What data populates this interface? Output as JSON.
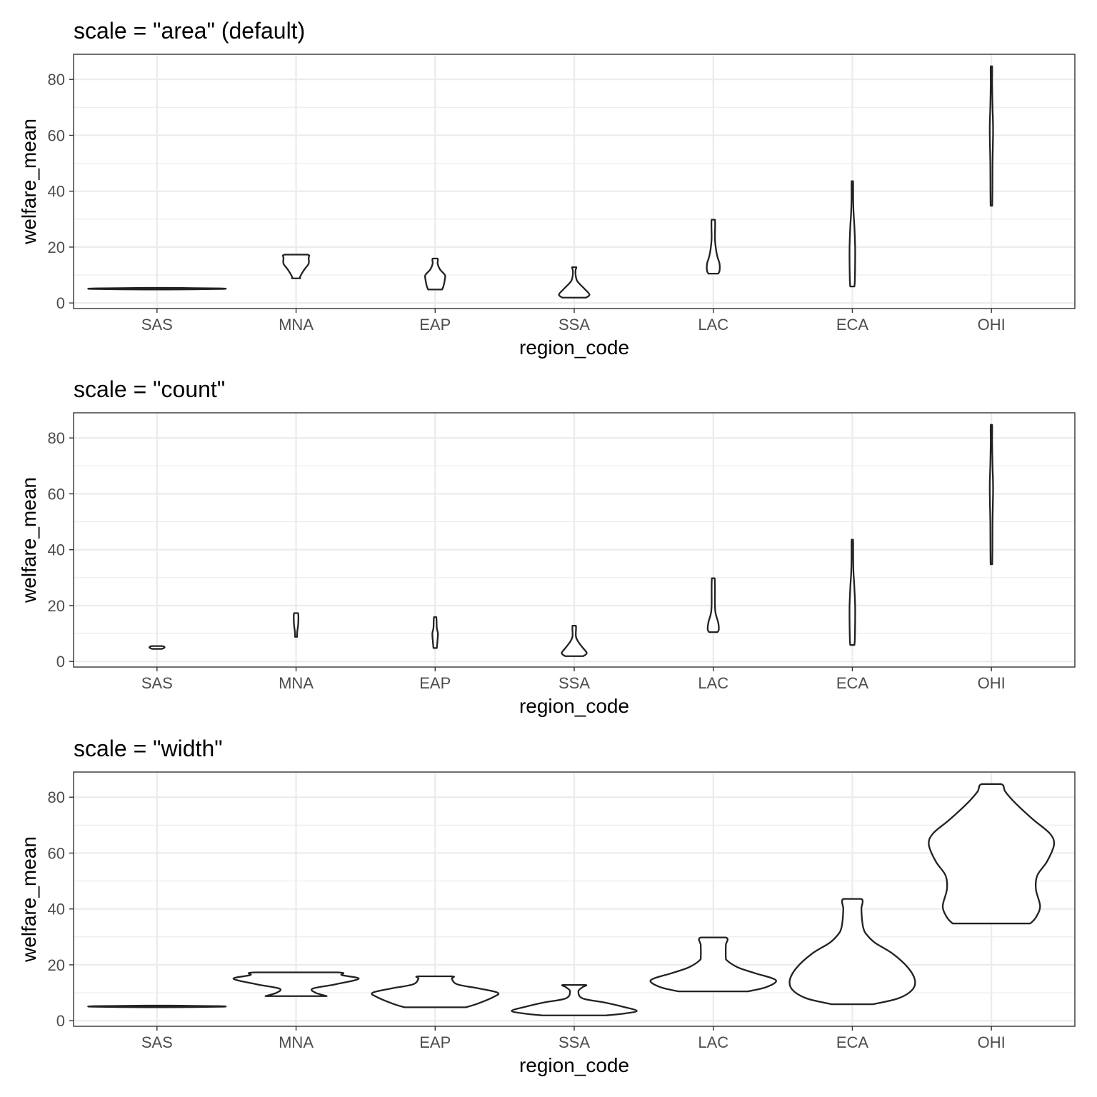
{
  "chart_data": [
    {
      "type": "violin",
      "title": "scale = \"area\" (default)",
      "xlabel": "region_code",
      "ylabel": "welfare_mean",
      "ylim": [
        -2,
        89
      ],
      "yticks": [
        0,
        20,
        40,
        60,
        80
      ],
      "categories": [
        "SAS",
        "MNA",
        "EAP",
        "SSA",
        "LAC",
        "ECA",
        "OHI"
      ],
      "violins": [
        {
          "region": "SAS",
          "profile": [
            [
              4.8,
              0.09
            ],
            [
              5.0,
              0.45
            ],
            [
              5.2,
              0.45
            ],
            [
              5.4,
              0.09
            ]
          ]
        },
        {
          "region": "MNA",
          "profile": [
            [
              8.8,
              0.03
            ],
            [
              9.5,
              0.03
            ],
            [
              12.0,
              0.06
            ],
            [
              14.0,
              0.09
            ],
            [
              16.0,
              0.09
            ],
            [
              17.3,
              0.08
            ]
          ]
        },
        {
          "region": "EAP",
          "profile": [
            [
              4.8,
              0.05
            ],
            [
              6.0,
              0.06
            ],
            [
              8.5,
              0.07
            ],
            [
              10.0,
              0.07
            ],
            [
              12.0,
              0.035
            ],
            [
              14.0,
              0.018
            ],
            [
              15.9,
              0.018
            ]
          ]
        },
        {
          "region": "SSA",
          "profile": [
            [
              1.9,
              0.085
            ],
            [
              3.0,
              0.11
            ],
            [
              5.0,
              0.075
            ],
            [
              6.5,
              0.045
            ],
            [
              8.0,
              0.02
            ],
            [
              10.0,
              0.01
            ],
            [
              11.8,
              0.01
            ],
            [
              12.8,
              0.015
            ]
          ]
        },
        {
          "region": "LAC",
          "profile": [
            [
              10.5,
              0.035
            ],
            [
              11.5,
              0.045
            ],
            [
              14.0,
              0.045
            ],
            [
              16.5,
              0.03
            ],
            [
              19.0,
              0.02
            ],
            [
              23.0,
              0.012
            ],
            [
              29.8,
              0.012
            ]
          ]
        },
        {
          "region": "ECA",
          "profile": [
            [
              5.9,
              0.015
            ],
            [
              8.0,
              0.018
            ],
            [
              14.0,
              0.02
            ],
            [
              20.0,
              0.02
            ],
            [
              27.0,
              0.015
            ],
            [
              32.0,
              0.009
            ],
            [
              37.0,
              0.006
            ],
            [
              43.6,
              0.005
            ]
          ]
        },
        {
          "region": "OHI",
          "profile": [
            [
              34.8,
              0.006
            ],
            [
              40.0,
              0.007
            ],
            [
              50.0,
              0.008
            ],
            [
              62.0,
              0.012
            ],
            [
              70.0,
              0.008
            ],
            [
              78.0,
              0.005
            ],
            [
              84.7,
              0.005
            ]
          ]
        }
      ]
    },
    {
      "type": "violin",
      "title": "scale = \"count\"",
      "xlabel": "region_code",
      "ylabel": "welfare_mean",
      "ylim": [
        -2,
        89
      ],
      "yticks": [
        0,
        20,
        40,
        60,
        80
      ],
      "categories": [
        "SAS",
        "MNA",
        "EAP",
        "SSA",
        "LAC",
        "ECA",
        "OHI"
      ],
      "violins": [
        {
          "region": "SAS",
          "profile": [
            [
              4.5,
              0.035
            ],
            [
              5.0,
              0.055
            ],
            [
              5.5,
              0.035
            ]
          ]
        },
        {
          "region": "MNA",
          "profile": [
            [
              8.8,
              0.007
            ],
            [
              10.5,
              0.008
            ],
            [
              12.0,
              0.012
            ],
            [
              14.0,
              0.016
            ],
            [
              17.3,
              0.014
            ]
          ]
        },
        {
          "region": "EAP",
          "profile": [
            [
              4.8,
              0.012
            ],
            [
              7.0,
              0.016
            ],
            [
              10.0,
              0.02
            ],
            [
              12.0,
              0.012
            ],
            [
              15.9,
              0.008
            ]
          ]
        },
        {
          "region": "SSA",
          "profile": [
            [
              1.9,
              0.065
            ],
            [
              3.0,
              0.09
            ],
            [
              5.0,
              0.06
            ],
            [
              7.0,
              0.03
            ],
            [
              9.0,
              0.012
            ],
            [
              12.8,
              0.012
            ]
          ]
        },
        {
          "region": "LAC",
          "profile": [
            [
              10.5,
              0.03
            ],
            [
              11.5,
              0.04
            ],
            [
              14.0,
              0.035
            ],
            [
              17.0,
              0.018
            ],
            [
              20.0,
              0.012
            ],
            [
              29.8,
              0.01
            ]
          ]
        },
        {
          "region": "ECA",
          "profile": [
            [
              5.9,
              0.015
            ],
            [
              8.0,
              0.018
            ],
            [
              14.0,
              0.02
            ],
            [
              20.0,
              0.02
            ],
            [
              27.0,
              0.014
            ],
            [
              32.0,
              0.008
            ],
            [
              37.0,
              0.006
            ],
            [
              43.6,
              0.005
            ]
          ]
        },
        {
          "region": "OHI",
          "profile": [
            [
              34.8,
              0.006
            ],
            [
              40.0,
              0.007
            ],
            [
              50.0,
              0.008
            ],
            [
              62.0,
              0.012
            ],
            [
              70.0,
              0.008
            ],
            [
              78.0,
              0.005
            ],
            [
              84.7,
              0.005
            ]
          ]
        }
      ]
    },
    {
      "type": "violin",
      "title": "scale = \"width\"",
      "xlabel": "region_code",
      "ylabel": "welfare_mean",
      "ylim": [
        -2,
        89
      ],
      "yticks": [
        0,
        20,
        40,
        60,
        80
      ],
      "categories": [
        "SAS",
        "MNA",
        "EAP",
        "SSA",
        "LAC",
        "ECA",
        "OHI"
      ],
      "violins": [
        {
          "region": "SAS",
          "profile": [
            [
              4.8,
              0.09
            ],
            [
              5.0,
              0.45
            ],
            [
              5.2,
              0.45
            ],
            [
              5.4,
              0.09
            ]
          ]
        },
        {
          "region": "MNA",
          "profile": [
            [
              8.8,
              0.22
            ],
            [
              10.0,
              0.14
            ],
            [
              11.5,
              0.12
            ],
            [
              13.0,
              0.28
            ],
            [
              15.0,
              0.45
            ],
            [
              16.3,
              0.33
            ],
            [
              17.3,
              0.29
            ]
          ]
        },
        {
          "region": "EAP",
          "profile": [
            [
              4.8,
              0.22
            ],
            [
              6.0,
              0.3
            ],
            [
              8.5,
              0.42
            ],
            [
              10.0,
              0.45
            ],
            [
              11.5,
              0.32
            ],
            [
              13.0,
              0.16
            ],
            [
              15.0,
              0.12
            ],
            [
              15.9,
              0.12
            ]
          ]
        },
        {
          "region": "SSA",
          "profile": [
            [
              1.9,
              0.23
            ],
            [
              2.5,
              0.35
            ],
            [
              3.5,
              0.45
            ],
            [
              5.0,
              0.35
            ],
            [
              6.5,
              0.22
            ],
            [
              8.0,
              0.06
            ],
            [
              10.5,
              0.03
            ],
            [
              12.0,
              0.06
            ],
            [
              12.8,
              0.08
            ]
          ]
        },
        {
          "region": "LAC",
          "profile": [
            [
              10.5,
              0.25
            ],
            [
              12.0,
              0.38
            ],
            [
              14.5,
              0.45
            ],
            [
              17.0,
              0.3
            ],
            [
              19.0,
              0.18
            ],
            [
              21.5,
              0.1
            ],
            [
              23.0,
              0.09
            ],
            [
              27.0,
              0.09
            ],
            [
              29.8,
              0.09
            ]
          ]
        },
        {
          "region": "ECA",
          "profile": [
            [
              5.9,
              0.15
            ],
            [
              8.0,
              0.33
            ],
            [
              11.0,
              0.43
            ],
            [
              14.5,
              0.45
            ],
            [
              19.0,
              0.4
            ],
            [
              24.0,
              0.29
            ],
            [
              28.0,
              0.16
            ],
            [
              31.0,
              0.1
            ],
            [
              33.0,
              0.08
            ],
            [
              36.0,
              0.07
            ],
            [
              40.0,
              0.065
            ],
            [
              43.6,
              0.065
            ]
          ]
        },
        {
          "region": "OHI",
          "profile": [
            [
              34.8,
              0.28
            ],
            [
              37.0,
              0.32
            ],
            [
              41.0,
              0.35
            ],
            [
              47.0,
              0.32
            ],
            [
              52.0,
              0.33
            ],
            [
              57.0,
              0.4
            ],
            [
              63.0,
              0.45
            ],
            [
              67.0,
              0.42
            ],
            [
              72.0,
              0.3
            ],
            [
              78.0,
              0.17
            ],
            [
              82.0,
              0.1
            ],
            [
              84.7,
              0.07
            ]
          ]
        }
      ]
    }
  ]
}
